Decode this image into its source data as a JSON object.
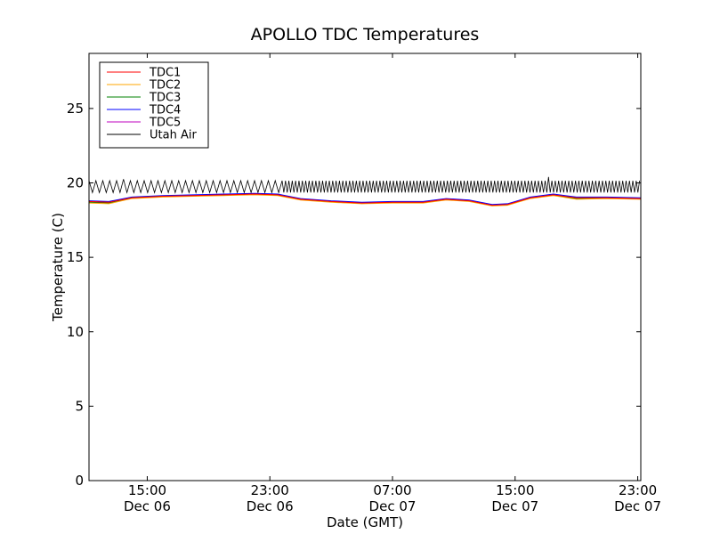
{
  "chart_data": {
    "type": "line",
    "title": "APOLLO TDC Temperatures",
    "xlabel": "Date (GMT)",
    "ylabel": "Temperature (C)",
    "ylim": [
      0,
      28.7
    ],
    "xlim_hours": [
      11.2,
      47.2
    ],
    "y_ticks": [
      0,
      5,
      10,
      15,
      20,
      25
    ],
    "x_ticks": [
      {
        "hour": 15,
        "time": "15:00",
        "date": "Dec 06"
      },
      {
        "hour": 23,
        "time": "23:00",
        "date": "Dec 06"
      },
      {
        "hour": 31,
        "time": "07:00",
        "date": "Dec 07"
      },
      {
        "hour": 39,
        "time": "15:00",
        "date": "Dec 07"
      },
      {
        "hour": 47,
        "time": "23:00",
        "date": "Dec 07"
      }
    ],
    "legend_position": "top-left",
    "series": [
      {
        "name": "TDC1",
        "color": "#ff0000",
        "hours": [
          11.2,
          12.5,
          14.0,
          16.0,
          18.0,
          20.0,
          22.0,
          23.5,
          25.0,
          27.0,
          29.0,
          31.0,
          33.0,
          34.5,
          36.0,
          37.5,
          38.5,
          40.0,
          41.5,
          43.0,
          45.0,
          47.2
        ],
        "values": [
          18.75,
          18.7,
          19.0,
          19.1,
          19.15,
          19.2,
          19.25,
          19.2,
          18.9,
          18.75,
          18.65,
          18.7,
          18.7,
          18.9,
          18.8,
          18.5,
          18.55,
          19.0,
          19.2,
          19.0,
          19.0,
          18.95
        ]
      },
      {
        "name": "TDC2",
        "color": "#ffa500",
        "hours": [
          11.2,
          12.5,
          14.0,
          16.0,
          18.0,
          20.0,
          22.0,
          23.5,
          25.0,
          27.0,
          29.0,
          31.0,
          33.0,
          34.5,
          36.0,
          37.5,
          38.5,
          40.0,
          41.5,
          43.0,
          45.0,
          47.2
        ],
        "values": [
          18.65,
          18.6,
          18.95,
          19.05,
          19.1,
          19.15,
          19.2,
          19.15,
          18.85,
          18.7,
          18.6,
          18.65,
          18.65,
          18.85,
          18.75,
          18.45,
          18.5,
          18.95,
          19.15,
          18.9,
          18.95,
          18.9
        ]
      },
      {
        "name": "TDC3",
        "color": "#008000",
        "hours": [
          11.2,
          12.5,
          14.0,
          16.0,
          18.0,
          20.0,
          22.0,
          23.5,
          25.0,
          27.0,
          29.0,
          31.0,
          33.0,
          34.5,
          36.0,
          37.5,
          38.5,
          40.0,
          41.5,
          43.0,
          45.0,
          47.2
        ],
        "values": [
          18.7,
          18.65,
          19.0,
          19.1,
          19.12,
          19.18,
          19.22,
          19.18,
          18.88,
          18.72,
          18.62,
          18.68,
          18.68,
          18.88,
          18.78,
          18.48,
          18.52,
          18.98,
          19.18,
          18.95,
          18.98,
          18.92
        ]
      },
      {
        "name": "TDC4",
        "color": "#0000ff",
        "hours": [
          11.2,
          12.5,
          14.0,
          16.0,
          18.0,
          20.0,
          22.0,
          23.5,
          25.0,
          27.0,
          29.0,
          31.0,
          33.0,
          34.5,
          36.0,
          37.5,
          38.5,
          40.0,
          41.5,
          43.0,
          45.0,
          47.2
        ],
        "values": [
          18.8,
          18.75,
          19.05,
          19.15,
          19.2,
          19.25,
          19.3,
          19.25,
          18.95,
          18.8,
          18.7,
          18.75,
          18.75,
          18.95,
          18.85,
          18.55,
          18.6,
          19.05,
          19.25,
          19.05,
          19.05,
          19.0
        ]
      },
      {
        "name": "TDC5",
        "color": "#bf00bf",
        "hours": [
          11.2,
          12.5,
          14.0,
          16.0,
          18.0,
          20.0,
          22.0,
          23.5,
          25.0,
          27.0,
          29.0,
          31.0,
          33.0,
          34.5,
          36.0,
          37.5,
          38.5,
          40.0,
          41.5,
          43.0,
          45.0,
          47.2
        ],
        "values": [
          18.72,
          18.68,
          19.02,
          19.12,
          19.16,
          19.2,
          19.25,
          19.2,
          18.9,
          18.76,
          18.66,
          18.7,
          18.7,
          18.9,
          18.8,
          18.5,
          18.55,
          19.0,
          19.2,
          19.0,
          19.0,
          18.95
        ]
      },
      {
        "name": "Utah Air",
        "color": "#000000",
        "oscillating": true,
        "segments": [
          {
            "start_hour": 11.2,
            "end_hour": 23.8,
            "period_hours": 0.45,
            "low": 19.35,
            "high": 20.15
          },
          {
            "start_hour": 23.8,
            "end_hour": 47.2,
            "period_hours": 0.22,
            "low": 19.35,
            "high": 20.15
          }
        ],
        "spikes": [
          {
            "hour": 13.5,
            "value": 20.25
          },
          {
            "hour": 41.2,
            "value": 20.4
          }
        ]
      }
    ]
  }
}
